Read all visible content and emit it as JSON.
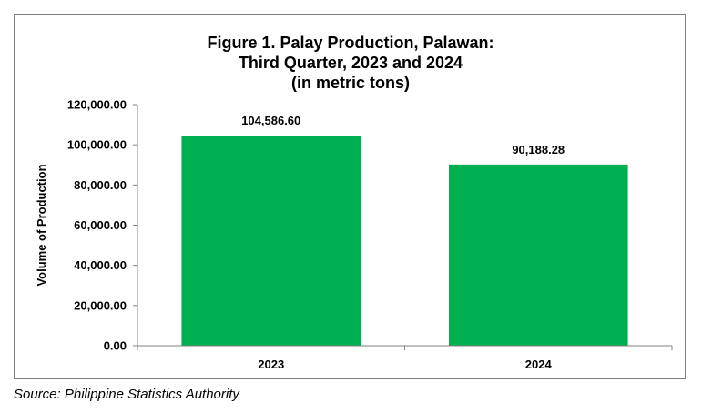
{
  "chart_data": {
    "type": "bar",
    "title_lines": [
      "Figure 1. Palay Production, Palawan:",
      "Third Quarter, 2023 and 2024",
      "(in metric tons)"
    ],
    "categories": [
      "2023",
      "2024"
    ],
    "values": [
      104586.6,
      90188.28
    ],
    "data_labels": [
      "104,586.60",
      "90,188.28"
    ],
    "xlabel": "",
    "ylabel": "Volume of Production",
    "ylim": [
      0,
      120000
    ],
    "y_ticks": [
      0,
      20000,
      40000,
      60000,
      80000,
      100000,
      120000
    ],
    "y_tick_labels": [
      "0.00",
      "20,000.00",
      "40,000.00",
      "60,000.00",
      "80,000.00",
      "100,000.00",
      "120,000.00"
    ],
    "bar_color": "#00B050",
    "grid": false,
    "legend": "none"
  },
  "source": "Source: Philippine Statistics Authority"
}
